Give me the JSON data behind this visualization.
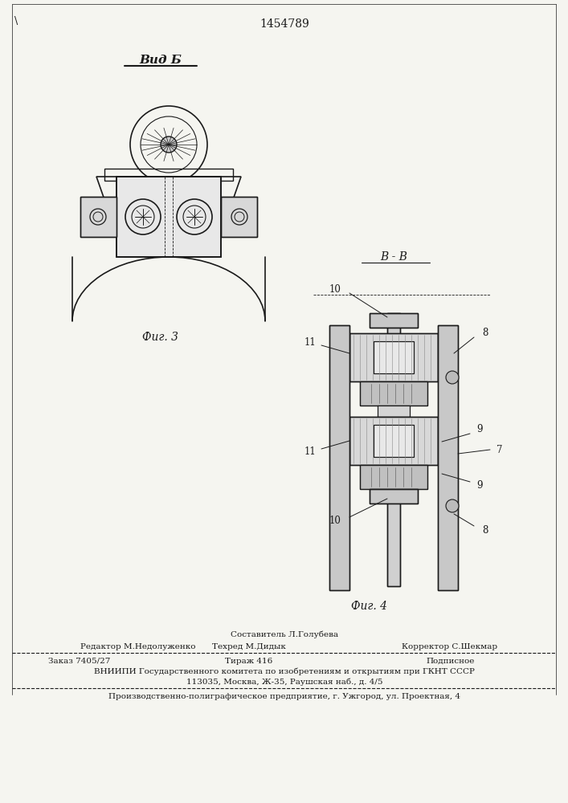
{
  "patent_number": "1454789",
  "background_color": "#f5f5f0",
  "line_color": "#1a1a1a",
  "fig_width": 7.07,
  "fig_height": 10.0,
  "view_b_label": "Вид Б",
  "fig3_label": "Фиг. 3",
  "fig4_label": "Фиг. 4",
  "section_label": "В - В",
  "footer_line1_left": "Редактор М.Недолуженко",
  "footer_line1_center": "Техред М.Дидык",
  "footer_line1_center2": "Составитель Л.Голубева",
  "footer_line1_right": "Корректор С.Шекмар",
  "footer_line2_left": "Заказ 7405/27",
  "footer_line2_center": "Тираж 416",
  "footer_line2_right": "Подписное",
  "footer_line3": "ВНИИПИ Государственного комитета по изобретениям и открытиям при ГКНТ СССР",
  "footer_line4": "113035, Москва, Ж-35, Раушская наб., д. 4/5",
  "footer_line5": "Производственно-полиграфическое предприятие, г. Ужгород, ул. Проектная, 4",
  "corner_mark": "\\",
  "labels_fig4": {
    "10_top": "10",
    "11_top": "11",
    "11_bot": "11",
    "10_bot": "10",
    "8_top": "8",
    "8_bot": "8",
    "9_top": "9",
    "9_bot": "9",
    "7": "7"
  }
}
